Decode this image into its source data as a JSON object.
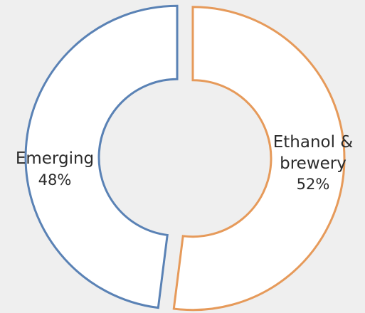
{
  "chart_data": {
    "type": "pie",
    "variant": "donut",
    "slices": [
      {
        "label_lines": [
          "Ethanol &",
          "brewery"
        ],
        "pct_label": "52%",
        "value": 52,
        "color": "#e69a5a"
      },
      {
        "label_lines": [
          "Emerging"
        ],
        "pct_label": "48%",
        "value": 48,
        "color": "#5a82b5"
      }
    ],
    "start_angle_deg": 0,
    "direction": "clockwise",
    "exploded": true,
    "slice_fill": "#ffffff",
    "background": "#efefef"
  }
}
